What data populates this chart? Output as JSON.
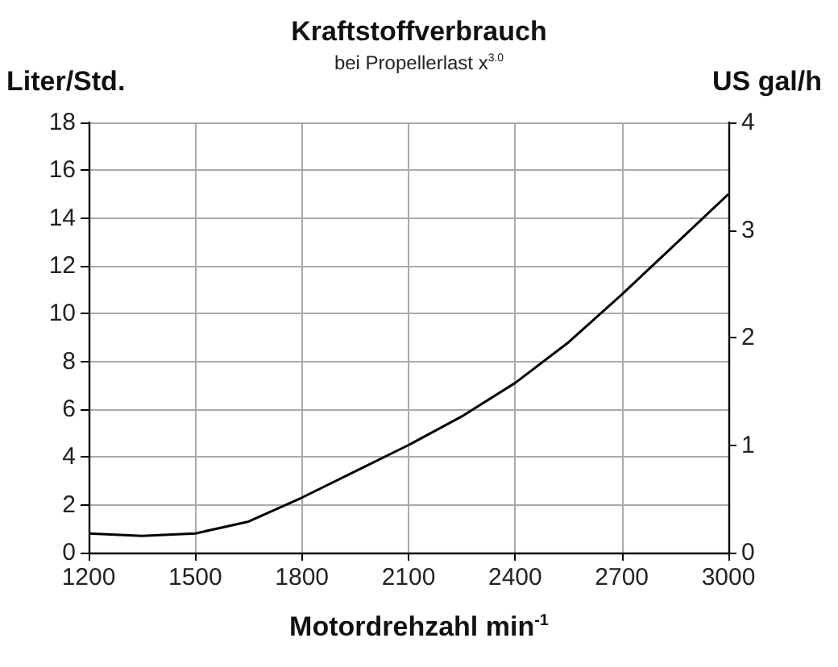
{
  "chart_data": {
    "type": "line",
    "title": "Kraftstoffverbrauch",
    "subtitle": "bei Propellerlast x$^{3.0}$",
    "xlabel": "Motordrehzahl min$^{-1}$",
    "ylabel": "Liter/Std.",
    "y2label": "US gal/h",
    "x": [
      1200,
      1350,
      1500,
      1650,
      1800,
      1950,
      2100,
      2250,
      2400,
      2550,
      2700,
      2850,
      3000
    ],
    "series": [
      {
        "color": "#000000",
        "values": [
          0.8,
          0.7,
          0.8,
          1.3,
          2.3,
          3.4,
          4.5,
          5.7,
          7.1,
          8.8,
          10.8,
          12.9,
          15.0
        ]
      }
    ],
    "xlim": [
      1200,
      3000
    ],
    "xticks": [
      1200,
      1500,
      1800,
      2100,
      2400,
      2700,
      3000
    ],
    "ylim": [
      0,
      18
    ],
    "yticks": [
      0,
      2,
      4,
      6,
      8,
      10,
      12,
      14,
      16,
      18
    ],
    "y2lim": [
      0,
      4
    ],
    "y2ticks": [
      0,
      1,
      2,
      3,
      4
    ],
    "grid": true,
    "marker": "none",
    "line_style": "solid"
  }
}
